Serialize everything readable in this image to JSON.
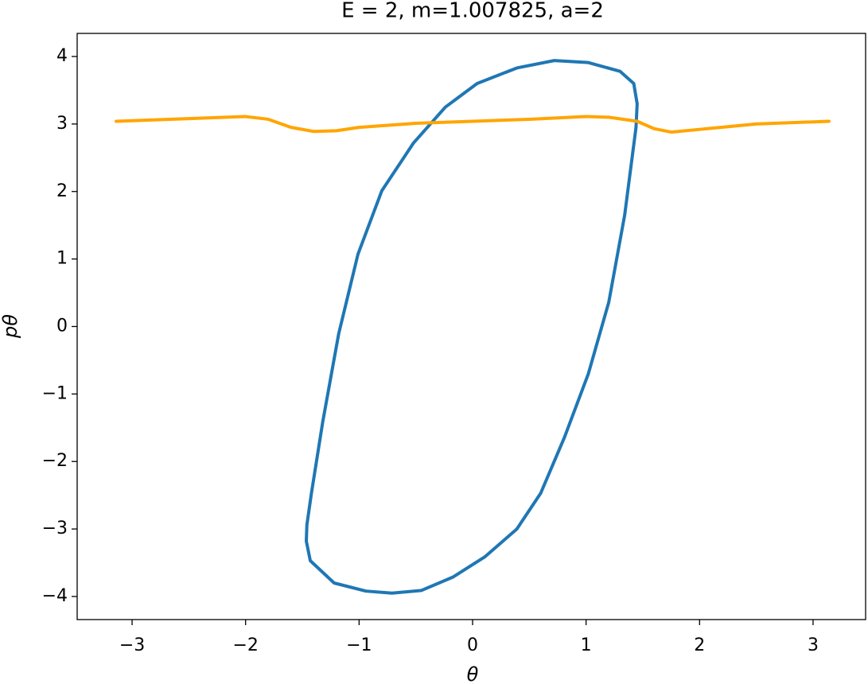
{
  "chart_data": {
    "type": "line",
    "title": "E = 2, m=1.007825, a=2",
    "xlabel": "θ",
    "ylabel": "pθ",
    "xlim": [
      -3.484,
      3.463
    ],
    "ylim": [
      -4.342,
      4.342
    ],
    "xticks": [
      {
        "value": -3,
        "label": "−3"
      },
      {
        "value": -2,
        "label": "−2"
      },
      {
        "value": -1,
        "label": "−1"
      },
      0,
      1,
      2,
      3
    ],
    "yticks": [
      {
        "value": -4,
        "label": "−4"
      },
      {
        "value": -3,
        "label": "−3"
      },
      {
        "value": -2,
        "label": "−2"
      },
      {
        "value": -1,
        "label": "−1"
      },
      0,
      1,
      2,
      3,
      4
    ],
    "grid": false,
    "series": [
      {
        "color": "#1f77b4",
        "x": [
          -1.465,
          -1.43,
          -1.22,
          -0.94,
          -0.71,
          -0.45,
          -0.17,
          0.11,
          0.39,
          0.6,
          0.81,
          1.02,
          1.2,
          1.34,
          1.44,
          1.45,
          1.42,
          1.3,
          1.02,
          0.72,
          0.39,
          0.04,
          -0.24,
          -0.52,
          -0.8,
          -1.01,
          -1.18,
          -1.32,
          -1.42,
          -1.46,
          -1.465
        ],
        "y": [
          -3.18,
          -3.47,
          -3.8,
          -3.92,
          -3.95,
          -3.91,
          -3.71,
          -3.41,
          -3.0,
          -2.47,
          -1.64,
          -0.7,
          0.36,
          1.65,
          2.95,
          3.3,
          3.6,
          3.78,
          3.91,
          3.94,
          3.83,
          3.6,
          3.25,
          2.72,
          2.01,
          1.07,
          -0.11,
          -1.41,
          -2.47,
          -2.94,
          -3.18
        ]
      },
      {
        "color": "#ffa500",
        "x": [
          -3.14,
          -2.5,
          -2.0,
          -1.8,
          -1.6,
          -1.4,
          -1.2,
          -1.0,
          -0.5,
          0,
          0.5,
          1.0,
          1.2,
          1.45,
          1.6,
          1.75,
          2.0,
          2.5,
          3.14
        ],
        "y": [
          3.04,
          3.08,
          3.11,
          3.07,
          2.95,
          2.89,
          2.9,
          2.95,
          3.01,
          3.04,
          3.07,
          3.11,
          3.1,
          3.04,
          2.93,
          2.88,
          2.92,
          3.0,
          3.04
        ]
      }
    ]
  }
}
